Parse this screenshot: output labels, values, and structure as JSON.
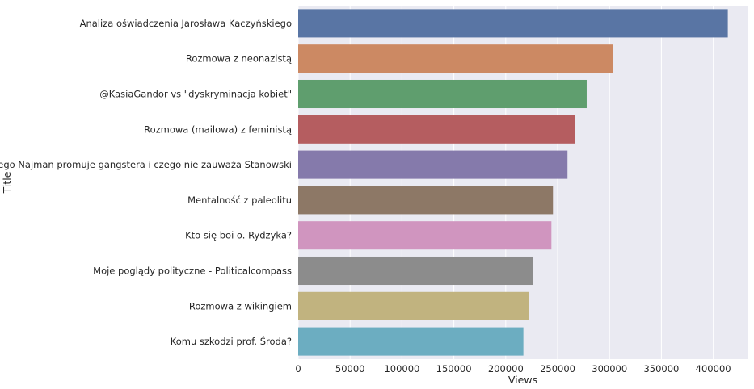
{
  "chart_data": {
    "type": "bar",
    "orientation": "horizontal",
    "xlabel": "Views",
    "ylabel": "Title",
    "xlim": [
      0,
      433000
    ],
    "grid": true,
    "background": "#eaeaf2",
    "x_ticks": [
      0,
      50000,
      100000,
      150000,
      200000,
      250000,
      300000,
      350000,
      400000
    ],
    "x_tick_labels": [
      "0",
      "50000",
      "100000",
      "150000",
      "200000",
      "250000",
      "300000",
      "350000",
      "400000"
    ],
    "categories": [
      "Analiza oświadczenia Jarosława Kaczyńskiego",
      "Rozmowa z neonazistą",
      "@KasiaGandor vs \"dyskryminacja kobiet\"",
      "Rozmowa (mailowa) z feministą",
      "Dlaczego Najman promuje gangstera i czego nie zauważa Stanowski",
      "Mentalność z paleolitu",
      "Kto się boi o. Rydzyka?",
      "Moje poglądy polityczne - Politicalcompass",
      "Rozmowa z wikingiem",
      "Komu szkodzi prof. Środa?"
    ],
    "values": [
      414000,
      303500,
      278000,
      266500,
      259500,
      245500,
      244000,
      226000,
      222000,
      217000
    ],
    "colors": [
      "#5975a4",
      "#cc8963",
      "#5f9e6e",
      "#b55d60",
      "#857aab",
      "#8d7866",
      "#d095bf",
      "#8c8c8c",
      "#c1b37f",
      "#6cadc1"
    ]
  }
}
